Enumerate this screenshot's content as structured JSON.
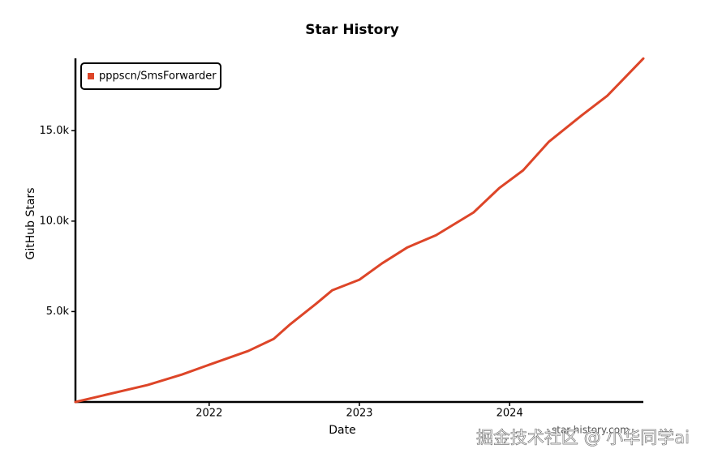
{
  "chart_data": {
    "type": "line",
    "title": "Star History",
    "xlabel": "Date",
    "ylabel": "GitHub Stars",
    "x": [
      2021.11,
      2021.59,
      2021.82,
      2022,
      2022.26,
      2022.43,
      2022.54,
      2022.71,
      2022.82,
      2023,
      2023.15,
      2023.32,
      2023.51,
      2023.76,
      2023.93,
      2024.09,
      2024.26,
      2024.48,
      2024.65,
      2024.89
    ],
    "series": [
      {
        "name": "pppscn/SmsForwarder",
        "color": "#dd4528",
        "values": [
          0,
          940,
          1520,
          2060,
          2820,
          3490,
          4300,
          5420,
          6180,
          6760,
          7660,
          8550,
          9220,
          10480,
          11820,
          12810,
          14380,
          15850,
          16930,
          18990
        ]
      }
    ],
    "xlim": [
      2021.11,
      2024.89
    ],
    "xticks": [
      2022,
      2023,
      2024
    ],
    "ylim": [
      0,
      19000
    ],
    "yticks": [
      {
        "value": 5000,
        "label": "5.0k"
      },
      {
        "value": 10000,
        "label": "10.0k"
      },
      {
        "value": 15000,
        "label": "15.0k"
      }
    ],
    "legend": "top-left",
    "grid": false
  },
  "credit": "star-history.com",
  "watermark": "掘金技术社区 @ 小华同学ai"
}
